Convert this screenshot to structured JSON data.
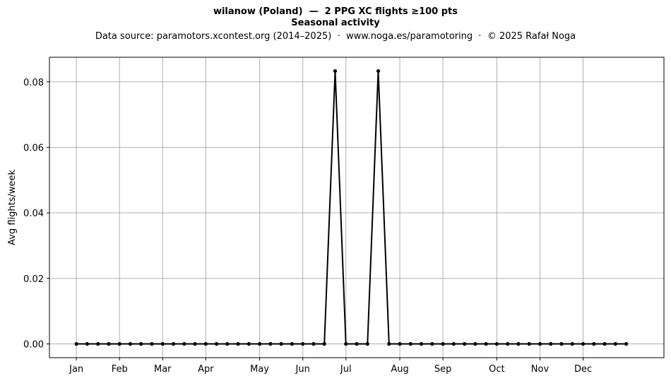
{
  "header": {
    "title_line1": "wilanow (Poland)  —  2 PPG XC flights ≥100 pts",
    "title_line2": "Seasonal activity",
    "subtitle": "Data source: paramotors.xcontest.org (2014–2025)  ·  www.noga.es/paramotoring  ·  © 2025 Rafał Noga"
  },
  "chart_data": {
    "type": "line",
    "title": "wilanow (Poland)  —  2 PPG XC flights ≥100 pts",
    "subtitle": "Seasonal activity",
    "xlabel": "",
    "ylabel": "Avg flights/week",
    "x_unit": "week of year",
    "xlim": [
      -2.5,
      54.5
    ],
    "ylim": [
      -0.0042,
      0.0875
    ],
    "y_ticks": [
      0.0,
      0.02,
      0.04,
      0.06,
      0.08
    ],
    "y_tick_labels": [
      "0.00",
      "0.02",
      "0.04",
      "0.06",
      "0.08"
    ],
    "x_ticks": [
      0,
      4,
      8,
      12,
      17,
      21,
      25,
      30,
      34,
      39,
      43,
      47
    ],
    "x_tick_labels": [
      "Jan",
      "Feb",
      "Mar",
      "Apr",
      "May",
      "Jun",
      "Jul",
      "Aug",
      "Sep",
      "Oct",
      "Nov",
      "Dec"
    ],
    "grid": true,
    "series": [
      {
        "color": "#000000",
        "marker": "dot",
        "x": [
          0,
          1,
          2,
          3,
          4,
          5,
          6,
          7,
          8,
          9,
          10,
          11,
          12,
          13,
          14,
          15,
          16,
          17,
          18,
          19,
          20,
          21,
          22,
          23,
          24,
          25,
          26,
          27,
          28,
          29,
          30,
          31,
          32,
          33,
          34,
          35,
          36,
          37,
          38,
          39,
          40,
          41,
          42,
          43,
          44,
          45,
          46,
          47,
          48,
          49,
          50,
          51
        ],
        "values": [
          0,
          0,
          0,
          0,
          0,
          0,
          0,
          0,
          0,
          0,
          0,
          0,
          0,
          0,
          0,
          0,
          0,
          0,
          0,
          0,
          0,
          0,
          0,
          0,
          0.0833,
          0,
          0,
          0,
          0.0833,
          0,
          0,
          0,
          0,
          0,
          0,
          0,
          0,
          0,
          0,
          0,
          0,
          0,
          0,
          0,
          0,
          0,
          0,
          0,
          0,
          0,
          0,
          0
        ]
      }
    ]
  }
}
